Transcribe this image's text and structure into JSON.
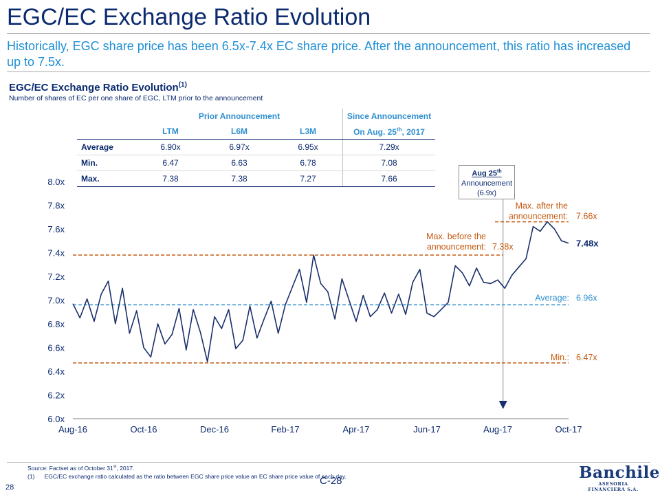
{
  "page": {
    "title": "EGC/EC Exchange Ratio Evolution",
    "subtitle": "Historically, EGC share price has been 6.5x-7.4x EC share price. After the announcement, this ratio has increased up to 7.5x.",
    "chart_title": "EGC/EC Exchange Ratio Evolution",
    "chart_title_sup": "(1)",
    "chart_subtitle": "Number of shares of EC per one share of EGC, LTM prior to the announcement",
    "page_number": "28",
    "code": "C-28",
    "source": "Source: Factset as of October 31st, 2017.",
    "note_marker": "(1)",
    "note": "EGC/EC exchange ratio calculated as the ratio between EGC share price value an EC share price value of each day.",
    "logo_brand": "Banchile",
    "logo_tag": "ASESORIA FINANCIERA S.A."
  },
  "table": {
    "group_prior": "Prior Announcement",
    "group_since": "Since Announcement",
    "cols": [
      "LTM",
      "L6M",
      "L3M",
      "On Aug. 25th, 2017"
    ],
    "rows": [
      {
        "label": "Average",
        "values": [
          "6.90x",
          "6.97x",
          "6.95x",
          "7.29x"
        ]
      },
      {
        "label": "Min.",
        "values": [
          "6.47",
          "6.63",
          "6.78",
          "7.08"
        ]
      },
      {
        "label": "Max.",
        "values": [
          "7.38",
          "7.38",
          "7.27",
          "7.66"
        ]
      }
    ]
  },
  "callout": {
    "line1": "Aug 25th",
    "line2": "Announcement",
    "line3": "(6.9x)"
  },
  "colors": {
    "navy": "#0b2a6f",
    "series": "#1a2f6b",
    "orange": "#c55a11",
    "blue": "#2f8fd0",
    "accent": "#1e8fd6"
  },
  "chart_data": {
    "type": "line",
    "title": "EGC/EC Exchange Ratio Evolution",
    "ylim": [
      6.0,
      8.0
    ],
    "yticks": [
      6.0,
      6.2,
      6.4,
      6.6,
      6.8,
      7.0,
      7.2,
      7.4,
      7.6,
      7.8,
      8.0
    ],
    "ytick_labels": [
      "6.0x",
      "6.2x",
      "6.4x",
      "6.6x",
      "6.8x",
      "7.0x",
      "7.2x",
      "7.4x",
      "7.6x",
      "7.8x",
      "8.0x"
    ],
    "xtick_labels": [
      "Aug-16",
      "Oct-16",
      "Dec-16",
      "Feb-17",
      "Apr-17",
      "Jun-17",
      "Aug-17",
      "Oct-17"
    ],
    "x_start_index": 0,
    "x_end_index": 14,
    "series": [
      {
        "name": "EGC/EC ratio",
        "x": [
          0,
          0.2,
          0.4,
          0.6,
          0.8,
          1.0,
          1.2,
          1.4,
          1.6,
          1.8,
          2.0,
          2.2,
          2.4,
          2.6,
          2.8,
          3.0,
          3.2,
          3.4,
          3.6,
          3.8,
          4.0,
          4.2,
          4.4,
          4.6,
          4.8,
          5.0,
          5.2,
          5.4,
          5.6,
          5.8,
          6.0,
          6.2,
          6.4,
          6.6,
          6.8,
          7.0,
          7.2,
          7.4,
          7.6,
          7.8,
          8.0,
          8.2,
          8.4,
          8.6,
          8.8,
          9.0,
          9.2,
          9.4,
          9.6,
          9.8,
          10.0,
          10.2,
          10.4,
          10.6,
          10.8,
          11.0,
          11.2,
          11.4,
          11.6,
          11.8,
          12.0,
          12.2,
          12.4,
          12.6,
          12.8,
          13.0,
          13.2,
          13.4,
          13.6,
          13.8,
          14.0
        ],
        "values": [
          6.97,
          6.85,
          7.01,
          6.82,
          7.05,
          7.16,
          6.8,
          7.1,
          6.72,
          6.91,
          6.6,
          6.52,
          6.8,
          6.63,
          6.71,
          6.93,
          6.58,
          6.92,
          6.73,
          6.48,
          6.86,
          6.76,
          6.92,
          6.59,
          6.66,
          6.95,
          6.68,
          6.84,
          6.99,
          6.72,
          6.96,
          7.11,
          7.26,
          6.98,
          7.38,
          7.14,
          7.07,
          6.84,
          7.18,
          7.0,
          6.82,
          7.04,
          6.86,
          6.92,
          7.06,
          6.89,
          7.05,
          6.88,
          7.15,
          7.26,
          6.89,
          6.86,
          6.92,
          6.98,
          7.29,
          7.23,
          7.12,
          7.27,
          7.15,
          7.14,
          7.17,
          7.1,
          7.21,
          7.28,
          7.35,
          7.62,
          7.58,
          7.66,
          7.6,
          7.5,
          7.48
        ]
      }
    ],
    "reference_lines": [
      {
        "name": "Max. before the announcement",
        "label_line1": "Max. before the",
        "label_line2": "announcement:",
        "value": 7.38,
        "value_label": "7.38x",
        "color": "#c55a11"
      },
      {
        "name": "Max. after the announcement",
        "label_line1": "Max. after the",
        "label_line2": "announcement:",
        "value": 7.66,
        "value_label": "7.66x",
        "color": "#c55a11"
      },
      {
        "name": "Average",
        "label": "Average:",
        "value": 6.96,
        "value_label": "6.96x",
        "color": "#2f8fd0"
      },
      {
        "name": "Min.",
        "label": "Min.:",
        "value": 6.47,
        "value_label": "6.47x",
        "color": "#c55a11"
      }
    ],
    "last_value": 7.48,
    "last_value_label": "7.48x",
    "announcement_x": 12.15
  }
}
